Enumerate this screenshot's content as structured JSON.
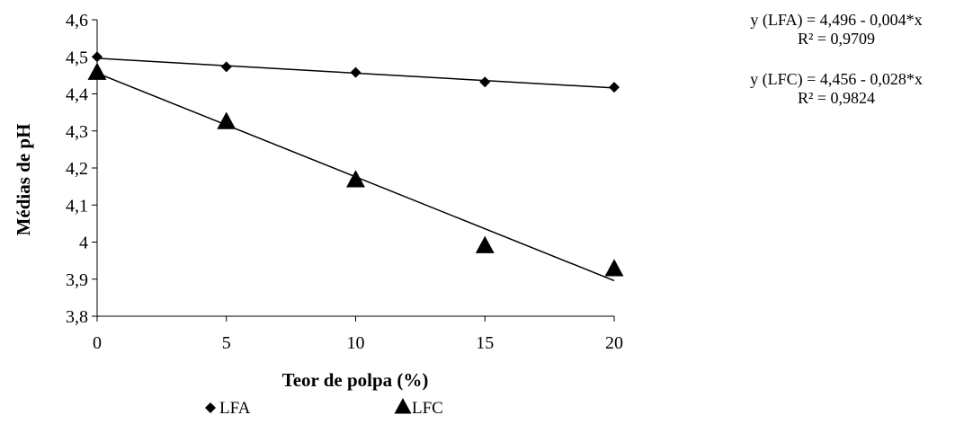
{
  "chart_data": {
    "type": "scatter",
    "xlabel": "Teor de polpa (%)",
    "ylabel": "Médias de pH",
    "xticks": [
      "0",
      "5",
      "10",
      "15",
      "20"
    ],
    "yticks": [
      "3,8",
      "3,9",
      "4",
      "4,1",
      "4,2",
      "4,3",
      "4,4",
      "4,5",
      "4,6"
    ],
    "xlim": [
      0,
      20
    ],
    "ylim": [
      3.8,
      4.6
    ],
    "grid": false,
    "legend_position": "bottom",
    "series": [
      {
        "name": "LFA",
        "marker": "diamond",
        "x": [
          0,
          5,
          10,
          15,
          20
        ],
        "y": [
          4.5,
          4.473,
          4.458,
          4.432,
          4.418
        ],
        "trendline": {
          "intercept": 4.496,
          "slope": -0.004
        },
        "equation": "y (LFA) = 4,496 - 0,004*x",
        "r2": "R² = 0,9709"
      },
      {
        "name": "LFC",
        "marker": "triangle",
        "x": [
          0,
          5,
          10,
          15,
          20
        ],
        "y": [
          4.458,
          4.325,
          4.168,
          3.99,
          3.928
        ],
        "trendline": {
          "intercept": 4.456,
          "slope": -0.028
        },
        "equation": "y (LFC)  = 4,456 - 0,028*x",
        "r2": "R² = 0,9824"
      }
    ],
    "colors": {
      "marker": "#000000",
      "line": "#000000"
    }
  }
}
